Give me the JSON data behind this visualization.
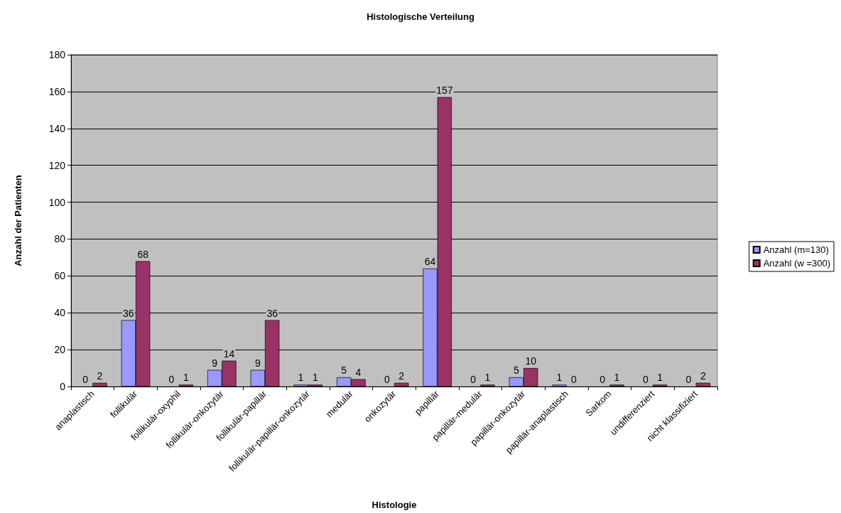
{
  "chart_data": {
    "type": "bar",
    "title": "Histologische Verteilung",
    "xlabel": "Histologie",
    "ylabel": "Anzahl der Patienten",
    "categories": [
      "anaplastisch",
      "follikulär",
      "follikulär-oxyphil",
      "follikulär-onkozytär",
      "follikulär-papillär",
      "follikulär-papillär-onkozytär",
      "medulär",
      "onkozytär",
      "papillär",
      "papillär-medulär",
      "papillär-onkozytär",
      "papillär-anaplastisch",
      "Sarkom",
      "undifferenziert",
      "nicht klassifiziert"
    ],
    "series": [
      {
        "name": "Anzahl (m=130)",
        "color": "#9999ff",
        "values": [
          0,
          36,
          0,
          9,
          9,
          1,
          5,
          0,
          64,
          0,
          5,
          1,
          0,
          0,
          0
        ]
      },
      {
        "name": "Anzahl (w =300)",
        "color": "#993366",
        "values": [
          2,
          68,
          1,
          14,
          36,
          1,
          4,
          2,
          157,
          1,
          10,
          0,
          1,
          1,
          2
        ]
      }
    ],
    "ylim": [
      0,
      180
    ],
    "yticks": [
      0,
      20,
      40,
      60,
      80,
      100,
      120,
      140,
      160,
      180
    ],
    "grid": "y",
    "legend": "right",
    "data_labels": true
  }
}
